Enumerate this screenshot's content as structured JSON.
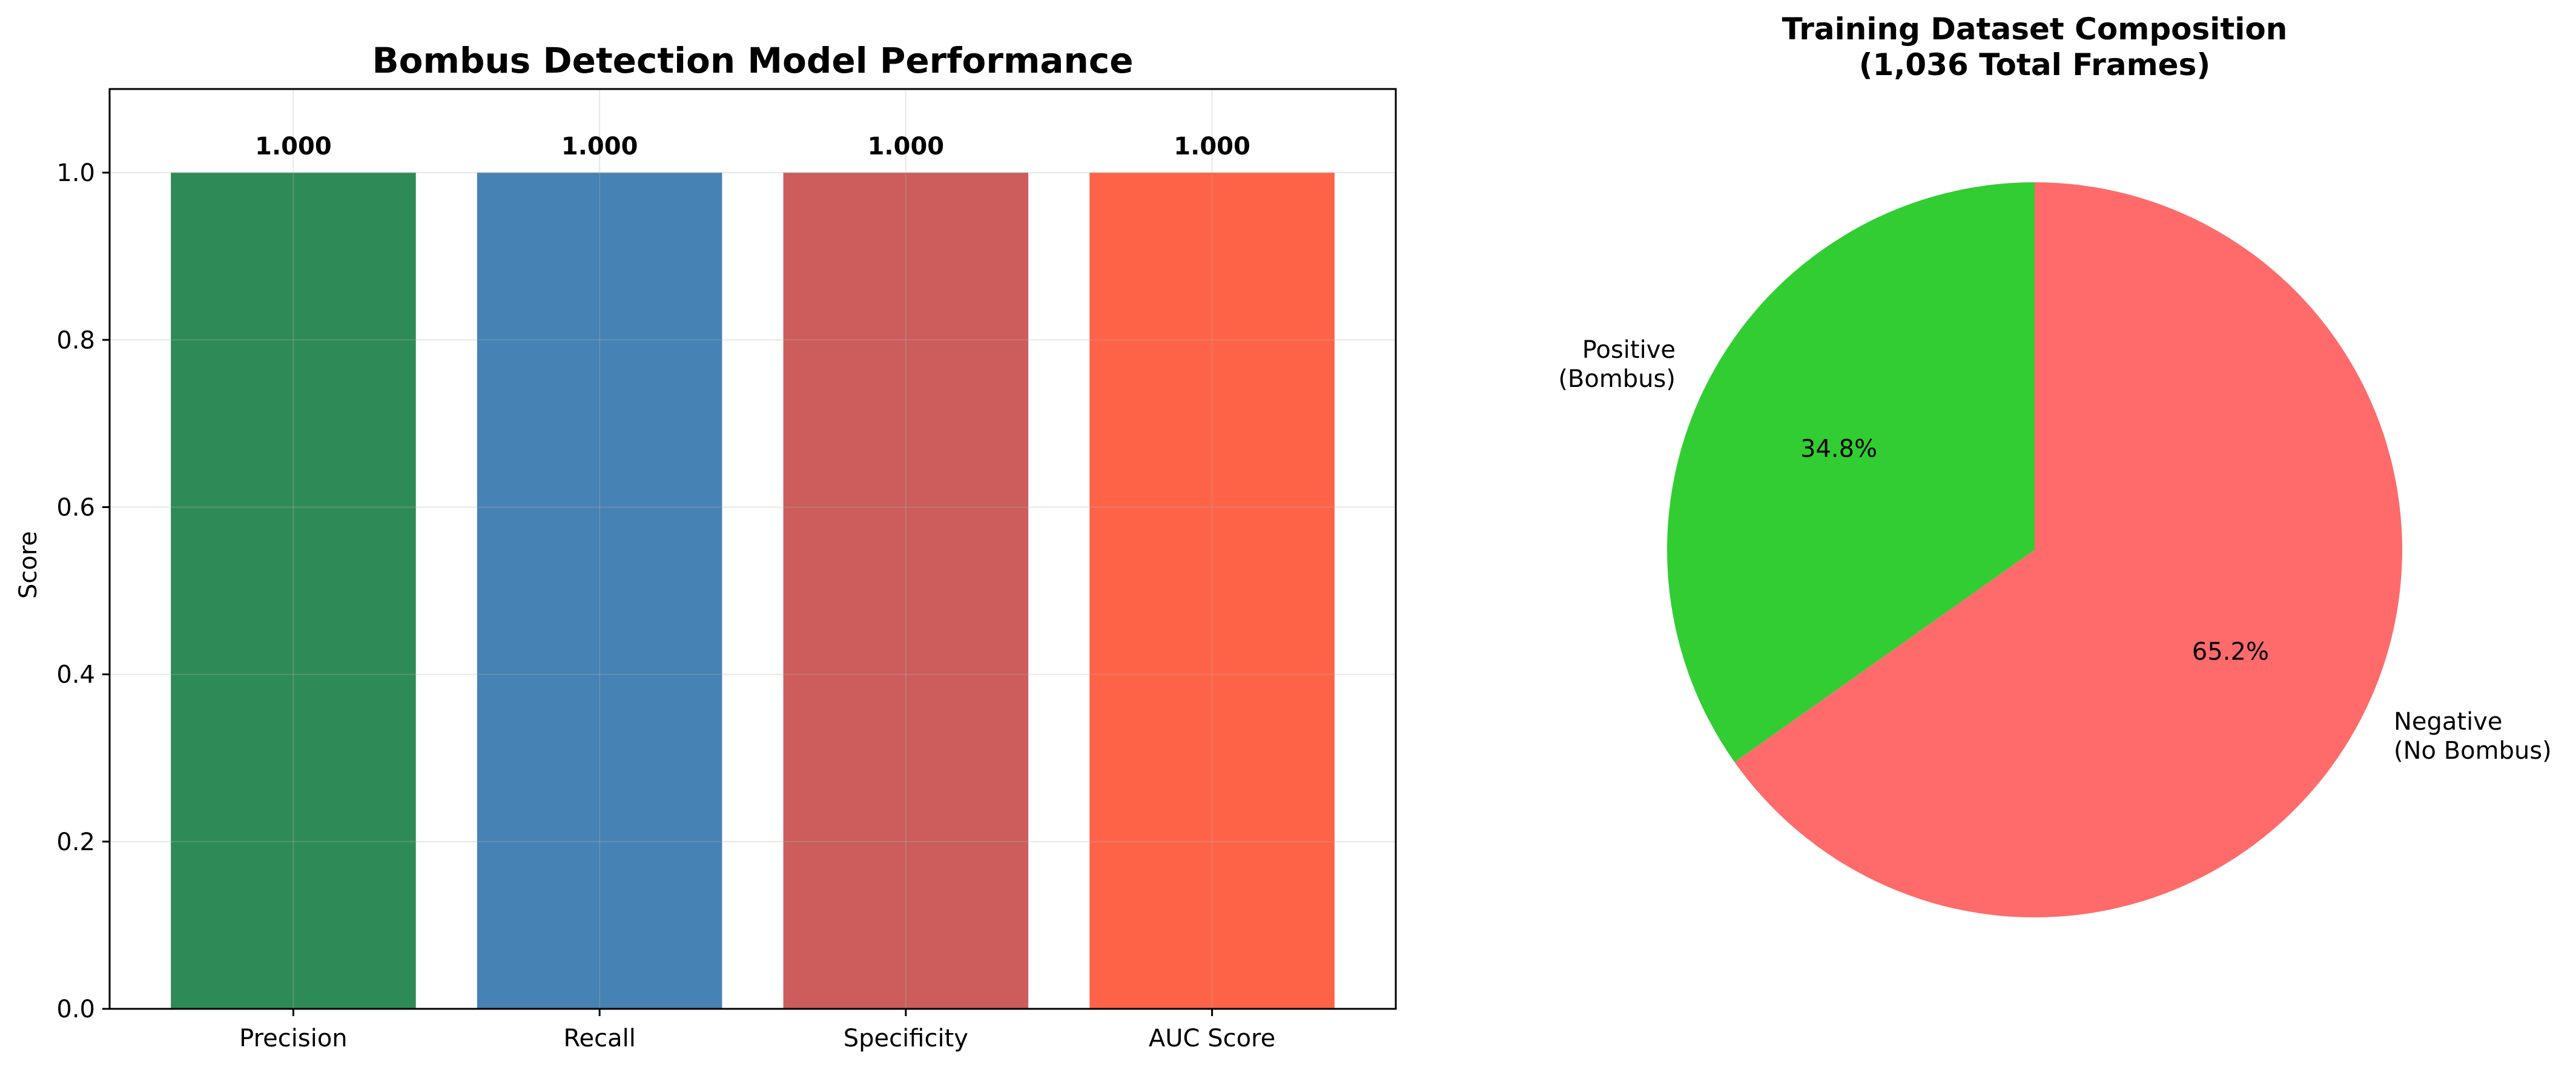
{
  "chart_data": [
    {
      "type": "bar",
      "title": "Bombus Detection Model Performance",
      "xlabel": "",
      "ylabel": "Score",
      "ylim": [
        0,
        1.1
      ],
      "yticks": [
        "0.0",
        "0.2",
        "0.4",
        "0.6",
        "0.8",
        "1.0"
      ],
      "grid": true,
      "categories": [
        "Precision",
        "Recall",
        "Specificity",
        "AUC Score"
      ],
      "values": [
        1.0,
        1.0,
        1.0,
        1.0
      ],
      "value_labels": [
        "1.000",
        "1.000",
        "1.000",
        "1.000"
      ],
      "colors": [
        "#2e8b57",
        "#4682b4",
        "#cd5c5c",
        "#ff6347"
      ]
    },
    {
      "type": "pie",
      "title": "Training Dataset Composition",
      "subtitle": "(1,036 Total Frames)",
      "labels": [
        [
          "Positive",
          "(Bombus)"
        ],
        [
          "Negative",
          "(No Bombus)"
        ]
      ],
      "values": [
        34.8,
        65.2
      ],
      "pct_labels": [
        "34.8%",
        "65.2%"
      ],
      "colors": [
        "#32cd32",
        "#ff6b6b"
      ],
      "start_angle_deg": 90,
      "direction": "counterclockwise"
    }
  ]
}
